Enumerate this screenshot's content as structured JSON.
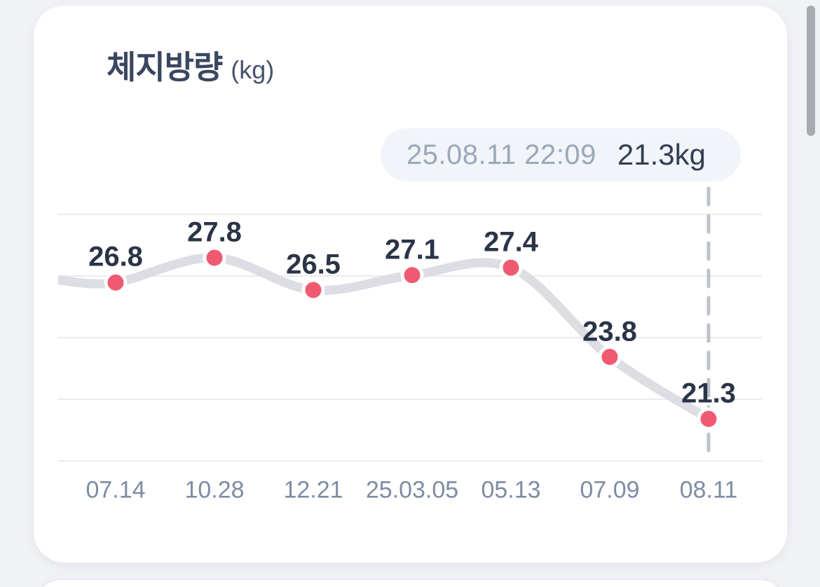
{
  "header": {
    "title": "체지방량",
    "unit": "(kg)"
  },
  "tooltip": {
    "datetime": "25.08.11 22:09",
    "value": "21.3kg"
  },
  "chart_data": {
    "type": "line",
    "title": "체지방량 (kg)",
    "ylabel": "kg",
    "categories": [
      "07.14",
      "10.28",
      "12.21",
      "25.03.05",
      "05.13",
      "07.09",
      "08.11"
    ],
    "values": [
      26.8,
      27.8,
      26.5,
      27.1,
      27.4,
      23.8,
      21.3
    ],
    "lead_in_value": 26.9,
    "selected_index": 6,
    "selected_annotation": {
      "datetime": "25.08.11 22:09",
      "value_text": "21.3kg"
    },
    "grid": true,
    "gridline_count": 5,
    "legend": false,
    "y_axis_labels_visible": false,
    "colors": {
      "line": "#DCDEE4",
      "point": "#F05A71",
      "point_ring": "#FFFFFF",
      "gridline": "#E9EBF0",
      "dashed_selector": "#BDC2CB",
      "value_label": "#2B3447",
      "axis_label": "#7E8CA2",
      "title": "#3B4660",
      "tooltip_bg": "#F1F4F8",
      "tooltip_date": "#9AA8B8",
      "tooltip_value": "#333D52"
    }
  }
}
